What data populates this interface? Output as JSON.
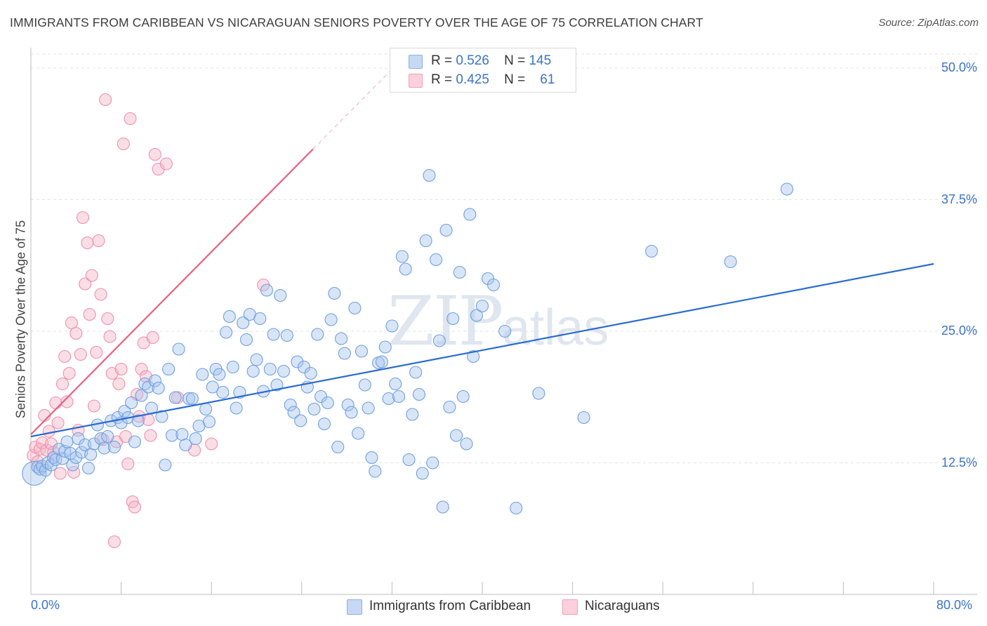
{
  "header": {
    "title": "IMMIGRANTS FROM CARIBBEAN VS NICARAGUAN SENIORS POVERTY OVER THE AGE OF 75 CORRELATION CHART",
    "source": "Source: ZipAtlas.com"
  },
  "watermark": {
    "zip": "ZIP",
    "atlas": "atlas"
  },
  "legend": {
    "caribbean": {
      "r_label": "R =",
      "r_value": "0.526",
      "n_label": "N =",
      "n_value": "145",
      "color": "#a9c5ee"
    },
    "nicaraguan": {
      "r_label": "R =",
      "r_value": "0.425",
      "n_label": "N =",
      "n_value": "61",
      "color": "#f5b6c8"
    }
  },
  "bottom_legend": {
    "caribbean": "Immigrants from Caribbean",
    "nicaraguan": "Nicaraguans"
  },
  "chart_data": {
    "type": "scatter",
    "title": "IMMIGRANTS FROM CARIBBEAN VS NICARAGUAN SENIORS POVERTY OVER THE AGE OF 75 CORRELATION CHART",
    "xlabel": "",
    "ylabel": "Seniors Poverty Over the Age of 75",
    "xlim": [
      0,
      80
    ],
    "ylim": [
      0,
      50
    ],
    "x_tick_labels": [
      "0.0%",
      "80.0%"
    ],
    "y_ticks": [
      12.5,
      25.0,
      37.5,
      50.0
    ],
    "y_tick_labels": [
      "12.5%",
      "25.0%",
      "37.5%",
      "50.0%"
    ],
    "grid": true,
    "series": [
      {
        "name": "Immigrants from Caribbean",
        "color": "#6f9fe0",
        "trend_color": "#2a6bd0",
        "trend": {
          "x0": 0,
          "y0": 15.0,
          "x1": 80,
          "y1": 31.4
        },
        "points": [
          [
            0.3,
            11.5
          ],
          [
            0.6,
            12.1
          ],
          [
            0.8,
            11.9
          ],
          [
            1.0,
            12.2
          ],
          [
            1.3,
            11.8
          ],
          [
            1.5,
            12.5
          ],
          [
            1.8,
            12.3
          ],
          [
            2.0,
            13.0
          ],
          [
            2.2,
            12.8
          ],
          [
            2.5,
            13.8
          ],
          [
            2.8,
            12.9
          ],
          [
            3.0,
            13.6
          ],
          [
            3.2,
            14.5
          ],
          [
            3.5,
            13.4
          ],
          [
            3.7,
            12.3
          ],
          [
            4.0,
            13.0
          ],
          [
            4.2,
            14.8
          ],
          [
            4.5,
            13.5
          ],
          [
            4.8,
            14.2
          ],
          [
            5.1,
            12.0
          ],
          [
            5.3,
            13.3
          ],
          [
            5.6,
            14.3
          ],
          [
            5.9,
            16.1
          ],
          [
            6.2,
            14.8
          ],
          [
            6.5,
            13.9
          ],
          [
            6.8,
            15.0
          ],
          [
            7.1,
            16.5
          ],
          [
            7.4,
            14.0
          ],
          [
            7.7,
            16.8
          ],
          [
            8.0,
            16.3
          ],
          [
            8.3,
            17.4
          ],
          [
            8.6,
            16.8
          ],
          [
            8.9,
            18.2
          ],
          [
            9.2,
            14.5
          ],
          [
            9.5,
            16.5
          ],
          [
            9.8,
            18.9
          ],
          [
            10.1,
            20.0
          ],
          [
            10.4,
            19.7
          ],
          [
            10.7,
            17.7
          ],
          [
            11.0,
            20.3
          ],
          [
            11.3,
            19.6
          ],
          [
            11.6,
            16.9
          ],
          [
            11.9,
            12.3
          ],
          [
            12.2,
            21.4
          ],
          [
            12.5,
            15.1
          ],
          [
            12.8,
            18.7
          ],
          [
            13.1,
            23.3
          ],
          [
            13.4,
            15.2
          ],
          [
            13.7,
            14.2
          ],
          [
            14.0,
            18.6
          ],
          [
            14.3,
            18.6
          ],
          [
            14.6,
            14.8
          ],
          [
            14.9,
            16.0
          ],
          [
            15.2,
            20.9
          ],
          [
            15.5,
            17.6
          ],
          [
            15.8,
            16.4
          ],
          [
            16.1,
            19.7
          ],
          [
            16.4,
            21.4
          ],
          [
            16.7,
            20.9
          ],
          [
            17.0,
            19.2
          ],
          [
            17.3,
            24.9
          ],
          [
            17.6,
            26.4
          ],
          [
            17.9,
            21.6
          ],
          [
            18.2,
            17.7
          ],
          [
            18.5,
            19.2
          ],
          [
            18.8,
            25.8
          ],
          [
            19.1,
            24.2
          ],
          [
            19.4,
            26.6
          ],
          [
            19.7,
            21.2
          ],
          [
            20.0,
            22.3
          ],
          [
            20.3,
            26.2
          ],
          [
            20.6,
            19.3
          ],
          [
            20.9,
            28.9
          ],
          [
            21.2,
            21.4
          ],
          [
            21.5,
            24.7
          ],
          [
            21.8,
            19.9
          ],
          [
            22.1,
            28.4
          ],
          [
            22.4,
            21.2
          ],
          [
            22.7,
            24.6
          ],
          [
            23.0,
            18.0
          ],
          [
            23.3,
            17.3
          ],
          [
            23.6,
            22.1
          ],
          [
            23.9,
            16.5
          ],
          [
            24.2,
            21.6
          ],
          [
            24.5,
            19.7
          ],
          [
            24.8,
            21.0
          ],
          [
            25.1,
            17.6
          ],
          [
            25.4,
            24.7
          ],
          [
            25.7,
            18.8
          ],
          [
            26.0,
            16.2
          ],
          [
            26.3,
            18.2
          ],
          [
            26.6,
            26.1
          ],
          [
            26.9,
            28.6
          ],
          [
            27.2,
            14.0
          ],
          [
            27.5,
            24.3
          ],
          [
            27.8,
            22.9
          ],
          [
            28.1,
            18.0
          ],
          [
            28.4,
            17.3
          ],
          [
            28.7,
            27.2
          ],
          [
            29.0,
            15.3
          ],
          [
            29.3,
            23.1
          ],
          [
            29.6,
            19.9
          ],
          [
            29.9,
            17.7
          ],
          [
            30.2,
            13.0
          ],
          [
            30.5,
            11.7
          ],
          [
            30.8,
            22.0
          ],
          [
            31.1,
            22.1
          ],
          [
            31.4,
            23.5
          ],
          [
            31.7,
            18.6
          ],
          [
            32.0,
            25.5
          ],
          [
            32.3,
            20.0
          ],
          [
            32.6,
            18.8
          ],
          [
            32.9,
            32.1
          ],
          [
            33.2,
            30.9
          ],
          [
            33.5,
            12.8
          ],
          [
            33.8,
            17.1
          ],
          [
            34.1,
            21.1
          ],
          [
            34.4,
            19.0
          ],
          [
            34.7,
            11.5
          ],
          [
            35.0,
            33.6
          ],
          [
            35.3,
            39.8
          ],
          [
            35.6,
            12.5
          ],
          [
            35.9,
            31.8
          ],
          [
            36.2,
            24.1
          ],
          [
            36.5,
            8.3
          ],
          [
            36.8,
            34.6
          ],
          [
            37.1,
            17.8
          ],
          [
            37.4,
            26.2
          ],
          [
            37.7,
            15.1
          ],
          [
            38.0,
            30.6
          ],
          [
            38.3,
            18.8
          ],
          [
            38.6,
            14.3
          ],
          [
            38.9,
            36.1
          ],
          [
            39.2,
            22.6
          ],
          [
            39.5,
            26.5
          ],
          [
            40.0,
            27.4
          ],
          [
            40.5,
            30.0
          ],
          [
            41.0,
            29.4
          ],
          [
            42.0,
            25.0
          ],
          [
            43.0,
            8.2
          ],
          [
            45.0,
            19.1
          ],
          [
            49.0,
            16.8
          ],
          [
            55.0,
            32.6
          ],
          [
            62.0,
            31.6
          ],
          [
            67.0,
            38.5
          ]
        ]
      },
      {
        "name": "Nicaraguans",
        "color": "#ef8fae",
        "trend_color": "#e8607f",
        "trend": {
          "x0": 0,
          "y0": 15.2,
          "x1": 25,
          "y1": 42.3
        },
        "points": [
          [
            0.2,
            13.2
          ],
          [
            0.4,
            14.0
          ],
          [
            0.6,
            12.6
          ],
          [
            0.8,
            13.8
          ],
          [
            1.0,
            14.4
          ],
          [
            1.2,
            17.0
          ],
          [
            1.4,
            13.7
          ],
          [
            1.6,
            15.5
          ],
          [
            1.8,
            14.3
          ],
          [
            2.0,
            13.5
          ],
          [
            2.2,
            18.2
          ],
          [
            2.4,
            16.3
          ],
          [
            2.6,
            11.5
          ],
          [
            2.8,
            20.0
          ],
          [
            3.0,
            22.6
          ],
          [
            3.2,
            18.3
          ],
          [
            3.4,
            21.0
          ],
          [
            3.6,
            25.8
          ],
          [
            3.8,
            11.6
          ],
          [
            4.0,
            24.8
          ],
          [
            4.2,
            15.6
          ],
          [
            4.4,
            22.8
          ],
          [
            4.6,
            35.8
          ],
          [
            4.8,
            29.5
          ],
          [
            5.0,
            33.4
          ],
          [
            5.2,
            26.6
          ],
          [
            5.4,
            30.3
          ],
          [
            5.6,
            17.9
          ],
          [
            5.8,
            23.0
          ],
          [
            6.0,
            33.6
          ],
          [
            6.2,
            28.5
          ],
          [
            6.4,
            14.7
          ],
          [
            6.6,
            47.0
          ],
          [
            6.8,
            26.2
          ],
          [
            7.0,
            24.5
          ],
          [
            7.2,
            21.0
          ],
          [
            7.4,
            5.0
          ],
          [
            7.6,
            14.5
          ],
          [
            7.8,
            20.0
          ],
          [
            8.0,
            21.4
          ],
          [
            8.2,
            42.8
          ],
          [
            8.4,
            15.0
          ],
          [
            8.6,
            12.4
          ],
          [
            8.8,
            45.2
          ],
          [
            9.0,
            8.8
          ],
          [
            9.2,
            8.3
          ],
          [
            9.4,
            19.0
          ],
          [
            9.6,
            16.9
          ],
          [
            9.8,
            21.4
          ],
          [
            10.0,
            23.9
          ],
          [
            10.2,
            20.7
          ],
          [
            10.4,
            16.6
          ],
          [
            10.6,
            15.1
          ],
          [
            10.8,
            24.4
          ],
          [
            11.0,
            41.8
          ],
          [
            11.3,
            40.4
          ],
          [
            12.0,
            40.9
          ],
          [
            13.0,
            18.7
          ],
          [
            14.5,
            13.7
          ],
          [
            16.0,
            14.3
          ],
          [
            20.6,
            29.4
          ]
        ]
      }
    ]
  }
}
